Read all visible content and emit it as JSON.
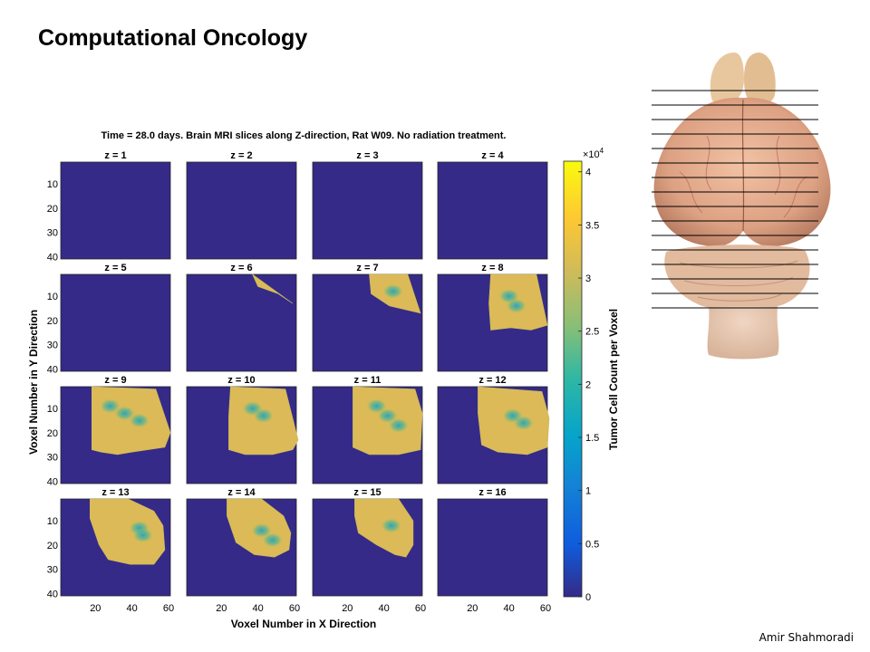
{
  "slide": {
    "title": "Computational Oncology",
    "author": "Amir Shahmoradi"
  },
  "colors": {
    "panel_background": "#352a87",
    "colormap": [
      "#352a87",
      "#0f5cdd",
      "#1481d6",
      "#06a4ca",
      "#2eb7a4",
      "#87bf77",
      "#d1bb59",
      "#fec832",
      "#f9fb0e"
    ]
  },
  "brain_image": {
    "icon": "rat-brain-photo-with-slice-lines",
    "slice_line_count": 16
  },
  "chart_data": {
    "type": "heatmap",
    "title": "Time = 28.0 days. Brain MRI slices along Z-direction, Rat W09. No radiation treatment.",
    "xlabel": "Voxel Number in X Direction",
    "ylabel": "Voxel Number in Y Direction",
    "x_ticks": [
      "20",
      "40",
      "60"
    ],
    "y_ticks": [
      "10",
      "20",
      "30",
      "40"
    ],
    "xlim": [
      1,
      61
    ],
    "ylim": [
      1,
      41
    ],
    "grid": false,
    "colorbar": {
      "label": "Tumor Cell Count per Voxel",
      "exponent_label": "×10",
      "exponent_power": "4",
      "range": [
        0,
        41000
      ],
      "ticks": [
        {
          "value": 0,
          "label": "0"
        },
        {
          "value": 5000,
          "label": "0.5"
        },
        {
          "value": 10000,
          "label": "1"
        },
        {
          "value": 15000,
          "label": "1.5"
        },
        {
          "value": 20000,
          "label": "2"
        },
        {
          "value": 25000,
          "label": "2.5"
        },
        {
          "value": 30000,
          "label": "3"
        },
        {
          "value": 35000,
          "label": "3.5"
        },
        {
          "value": 40000,
          "label": "4"
        }
      ]
    },
    "panels": [
      {
        "label": "z = 1",
        "tumor": []
      },
      {
        "label": "z = 2",
        "tumor": []
      },
      {
        "label": "z = 3",
        "tumor": []
      },
      {
        "label": "z = 4",
        "tumor": []
      },
      {
        "label": "z = 5",
        "tumor": []
      },
      {
        "label": "z = 6",
        "tumor": [
          [
            37,
            1
          ],
          [
            59,
            13
          ],
          [
            51,
            9
          ],
          [
            40,
            6
          ]
        ],
        "core": []
      },
      {
        "label": "z = 7",
        "tumor": [
          [
            32,
            1
          ],
          [
            53,
            1
          ],
          [
            60,
            17
          ],
          [
            43,
            14
          ],
          [
            33,
            9
          ]
        ],
        "core": [
          [
            45,
            8
          ]
        ]
      },
      {
        "label": "z = 8",
        "tumor": [
          [
            30,
            1
          ],
          [
            55,
            1
          ],
          [
            61,
            22
          ],
          [
            52,
            24
          ],
          [
            41,
            23
          ],
          [
            30,
            24
          ],
          [
            29,
            13
          ]
        ],
        "core": [
          [
            40,
            10
          ],
          [
            44,
            14
          ]
        ]
      },
      {
        "label": "z = 9",
        "tumor": [
          [
            18,
            1
          ],
          [
            53,
            2
          ],
          [
            61,
            20
          ],
          [
            58,
            26
          ],
          [
            40,
            28
          ],
          [
            32,
            29
          ],
          [
            23,
            28
          ],
          [
            18,
            27
          ],
          [
            18,
            13
          ]
        ],
        "core": [
          [
            28,
            9
          ],
          [
            36,
            12
          ],
          [
            44,
            15
          ]
        ]
      },
      {
        "label": "z = 10",
        "tumor": [
          [
            25,
            1
          ],
          [
            55,
            2
          ],
          [
            59,
            14
          ],
          [
            62,
            23
          ],
          [
            59,
            27
          ],
          [
            48,
            29
          ],
          [
            33,
            29
          ],
          [
            24,
            27
          ],
          [
            24,
            13
          ]
        ],
        "core": [
          [
            37,
            10
          ],
          [
            43,
            13
          ]
        ]
      },
      {
        "label": "z = 11",
        "tumor": [
          [
            23,
            1
          ],
          [
            57,
            2
          ],
          [
            61,
            12
          ],
          [
            60,
            27
          ],
          [
            48,
            29
          ],
          [
            32,
            29
          ],
          [
            23,
            26
          ],
          [
            23,
            12
          ]
        ],
        "core": [
          [
            36,
            9
          ],
          [
            42,
            13
          ],
          [
            48,
            17
          ]
        ]
      },
      {
        "label": "z = 12",
        "tumor": [
          [
            23,
            1
          ],
          [
            58,
            3
          ],
          [
            62,
            14
          ],
          [
            61,
            26
          ],
          [
            50,
            29
          ],
          [
            34,
            28
          ],
          [
            25,
            25
          ],
          [
            23,
            12
          ]
        ],
        "core": [
          [
            42,
            13
          ],
          [
            48,
            16
          ]
        ]
      },
      {
        "label": "z = 13",
        "tumor": [
          [
            17,
            1
          ],
          [
            38,
            1
          ],
          [
            52,
            6
          ],
          [
            57,
            12
          ],
          [
            58,
            22
          ],
          [
            52,
            28
          ],
          [
            39,
            28
          ],
          [
            27,
            26
          ],
          [
            22,
            20
          ],
          [
            17,
            9
          ]
        ],
        "core": [
          [
            44,
            13
          ],
          [
            46,
            16
          ]
        ]
      },
      {
        "label": "z = 14",
        "tumor": [
          [
            23,
            1
          ],
          [
            42,
            1
          ],
          [
            54,
            8
          ],
          [
            58,
            15
          ],
          [
            57,
            22
          ],
          [
            49,
            25
          ],
          [
            38,
            24
          ],
          [
            28,
            19
          ],
          [
            23,
            8
          ]
        ],
        "core": [
          [
            42,
            14
          ],
          [
            48,
            18
          ]
        ]
      },
      {
        "label": "z = 15",
        "tumor": [
          [
            24,
            1
          ],
          [
            48,
            1
          ],
          [
            56,
            10
          ],
          [
            56,
            20
          ],
          [
            52,
            25
          ],
          [
            46,
            24
          ],
          [
            36,
            20
          ],
          [
            26,
            15
          ],
          [
            24,
            8
          ]
        ],
        "core": [
          [
            44,
            12
          ]
        ]
      },
      {
        "label": "z = 16",
        "tumor": []
      }
    ]
  }
}
